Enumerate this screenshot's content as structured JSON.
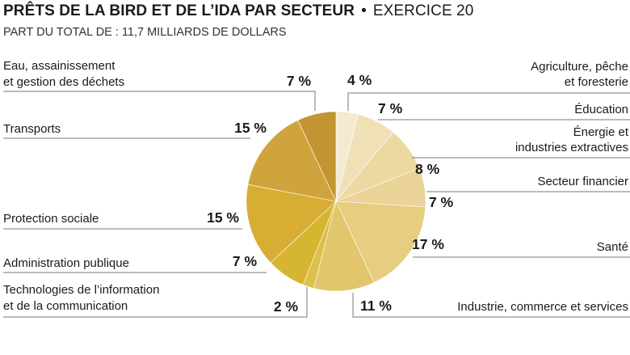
{
  "chart_data": {
    "type": "pie",
    "title": "PRÊTS DE LA BIRD ET DE L’IDA PAR SECTEUR",
    "title_suffix": "EXERCICE 20",
    "separator": "•",
    "subtitle": "PART DU TOTAL DE : 11,7 MILLIARDS DE DOLLARS",
    "slices": [
      {
        "label": [
          "Agriculture, pêche",
          "et foresterie"
        ],
        "value": 4,
        "value_label": "4 %",
        "color": "#f4ead0"
      },
      {
        "label": [
          "Éducation"
        ],
        "value": 7,
        "value_label": "7 %",
        "color": "#efe0b6"
      },
      {
        "label": [
          "Énergie et",
          "industries extractives"
        ],
        "value": 8,
        "value_label": "8 %",
        "color": "#ecd9a2"
      },
      {
        "label": [
          "Secteur financier"
        ],
        "value": 7,
        "value_label": "7 %",
        "color": "#e9d396"
      },
      {
        "label": [
          "Santé"
        ],
        "value": 17,
        "value_label": "17 %",
        "color": "#e7cd80"
      },
      {
        "label": [
          "Industrie, commerce et services"
        ],
        "value": 11,
        "value_label": "11 %",
        "color": "#e3c56c"
      },
      {
        "label": [
          "Technologies de l’information",
          "et de la communication"
        ],
        "value": 2,
        "value_label": "2 %",
        "color": "#ddbf4a"
      },
      {
        "label": [
          "Administration publique"
        ],
        "value": 7,
        "value_label": "7 %",
        "color": "#d6b530"
      },
      {
        "label": [
          "Protection sociale"
        ],
        "value": 15,
        "value_label": "15 %",
        "color": "#d7ad33"
      },
      {
        "label": [
          "Transports"
        ],
        "value": 15,
        "value_label": "15 %",
        "color": "#cfa43c"
      },
      {
        "label": [
          "Eau, assainissement",
          "et gestion des déchets"
        ],
        "value": 7,
        "value_label": "7 %",
        "color": "#c39432"
      }
    ]
  }
}
